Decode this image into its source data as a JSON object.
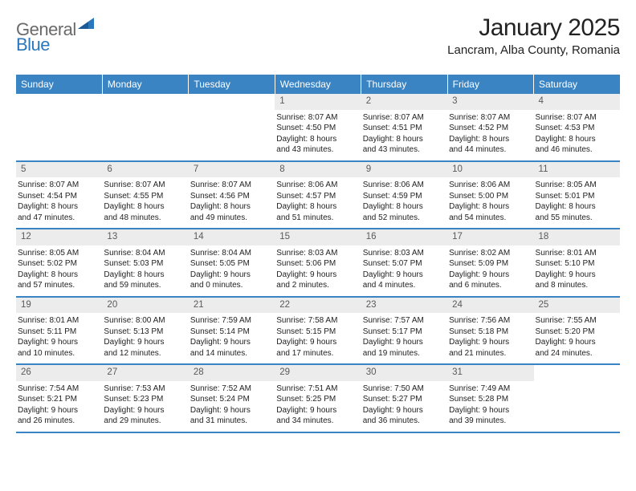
{
  "logo": {
    "text_general": "General",
    "text_blue": "Blue"
  },
  "header": {
    "month_title": "January 2025",
    "location": "Lancram, Alba County, Romania"
  },
  "style": {
    "header_bg": "#3b84c4",
    "header_fg": "#ffffff",
    "daynum_bg": "#ececec",
    "daynum_fg": "#5a5a5a",
    "text_color": "#222222",
    "sep_color": "#3b84c4",
    "month_title_fontsize": 30,
    "location_fontsize": 15,
    "weekday_fontsize": 12,
    "daynum_fontsize": 11.5,
    "cell_fontsize": 10
  },
  "weekdays": [
    "Sunday",
    "Monday",
    "Tuesday",
    "Wednesday",
    "Thursday",
    "Friday",
    "Saturday"
  ],
  "weeks": [
    [
      {
        "num": "",
        "lines": []
      },
      {
        "num": "",
        "lines": []
      },
      {
        "num": "",
        "lines": []
      },
      {
        "num": "1",
        "lines": [
          "Sunrise: 8:07 AM",
          "Sunset: 4:50 PM",
          "Daylight: 8 hours",
          "and 43 minutes."
        ]
      },
      {
        "num": "2",
        "lines": [
          "Sunrise: 8:07 AM",
          "Sunset: 4:51 PM",
          "Daylight: 8 hours",
          "and 43 minutes."
        ]
      },
      {
        "num": "3",
        "lines": [
          "Sunrise: 8:07 AM",
          "Sunset: 4:52 PM",
          "Daylight: 8 hours",
          "and 44 minutes."
        ]
      },
      {
        "num": "4",
        "lines": [
          "Sunrise: 8:07 AM",
          "Sunset: 4:53 PM",
          "Daylight: 8 hours",
          "and 46 minutes."
        ]
      }
    ],
    [
      {
        "num": "5",
        "lines": [
          "Sunrise: 8:07 AM",
          "Sunset: 4:54 PM",
          "Daylight: 8 hours",
          "and 47 minutes."
        ]
      },
      {
        "num": "6",
        "lines": [
          "Sunrise: 8:07 AM",
          "Sunset: 4:55 PM",
          "Daylight: 8 hours",
          "and 48 minutes."
        ]
      },
      {
        "num": "7",
        "lines": [
          "Sunrise: 8:07 AM",
          "Sunset: 4:56 PM",
          "Daylight: 8 hours",
          "and 49 minutes."
        ]
      },
      {
        "num": "8",
        "lines": [
          "Sunrise: 8:06 AM",
          "Sunset: 4:57 PM",
          "Daylight: 8 hours",
          "and 51 minutes."
        ]
      },
      {
        "num": "9",
        "lines": [
          "Sunrise: 8:06 AM",
          "Sunset: 4:59 PM",
          "Daylight: 8 hours",
          "and 52 minutes."
        ]
      },
      {
        "num": "10",
        "lines": [
          "Sunrise: 8:06 AM",
          "Sunset: 5:00 PM",
          "Daylight: 8 hours",
          "and 54 minutes."
        ]
      },
      {
        "num": "11",
        "lines": [
          "Sunrise: 8:05 AM",
          "Sunset: 5:01 PM",
          "Daylight: 8 hours",
          "and 55 minutes."
        ]
      }
    ],
    [
      {
        "num": "12",
        "lines": [
          "Sunrise: 8:05 AM",
          "Sunset: 5:02 PM",
          "Daylight: 8 hours",
          "and 57 minutes."
        ]
      },
      {
        "num": "13",
        "lines": [
          "Sunrise: 8:04 AM",
          "Sunset: 5:03 PM",
          "Daylight: 8 hours",
          "and 59 minutes."
        ]
      },
      {
        "num": "14",
        "lines": [
          "Sunrise: 8:04 AM",
          "Sunset: 5:05 PM",
          "Daylight: 9 hours",
          "and 0 minutes."
        ]
      },
      {
        "num": "15",
        "lines": [
          "Sunrise: 8:03 AM",
          "Sunset: 5:06 PM",
          "Daylight: 9 hours",
          "and 2 minutes."
        ]
      },
      {
        "num": "16",
        "lines": [
          "Sunrise: 8:03 AM",
          "Sunset: 5:07 PM",
          "Daylight: 9 hours",
          "and 4 minutes."
        ]
      },
      {
        "num": "17",
        "lines": [
          "Sunrise: 8:02 AM",
          "Sunset: 5:09 PM",
          "Daylight: 9 hours",
          "and 6 minutes."
        ]
      },
      {
        "num": "18",
        "lines": [
          "Sunrise: 8:01 AM",
          "Sunset: 5:10 PM",
          "Daylight: 9 hours",
          "and 8 minutes."
        ]
      }
    ],
    [
      {
        "num": "19",
        "lines": [
          "Sunrise: 8:01 AM",
          "Sunset: 5:11 PM",
          "Daylight: 9 hours",
          "and 10 minutes."
        ]
      },
      {
        "num": "20",
        "lines": [
          "Sunrise: 8:00 AM",
          "Sunset: 5:13 PM",
          "Daylight: 9 hours",
          "and 12 minutes."
        ]
      },
      {
        "num": "21",
        "lines": [
          "Sunrise: 7:59 AM",
          "Sunset: 5:14 PM",
          "Daylight: 9 hours",
          "and 14 minutes."
        ]
      },
      {
        "num": "22",
        "lines": [
          "Sunrise: 7:58 AM",
          "Sunset: 5:15 PM",
          "Daylight: 9 hours",
          "and 17 minutes."
        ]
      },
      {
        "num": "23",
        "lines": [
          "Sunrise: 7:57 AM",
          "Sunset: 5:17 PM",
          "Daylight: 9 hours",
          "and 19 minutes."
        ]
      },
      {
        "num": "24",
        "lines": [
          "Sunrise: 7:56 AM",
          "Sunset: 5:18 PM",
          "Daylight: 9 hours",
          "and 21 minutes."
        ]
      },
      {
        "num": "25",
        "lines": [
          "Sunrise: 7:55 AM",
          "Sunset: 5:20 PM",
          "Daylight: 9 hours",
          "and 24 minutes."
        ]
      }
    ],
    [
      {
        "num": "26",
        "lines": [
          "Sunrise: 7:54 AM",
          "Sunset: 5:21 PM",
          "Daylight: 9 hours",
          "and 26 minutes."
        ]
      },
      {
        "num": "27",
        "lines": [
          "Sunrise: 7:53 AM",
          "Sunset: 5:23 PM",
          "Daylight: 9 hours",
          "and 29 minutes."
        ]
      },
      {
        "num": "28",
        "lines": [
          "Sunrise: 7:52 AM",
          "Sunset: 5:24 PM",
          "Daylight: 9 hours",
          "and 31 minutes."
        ]
      },
      {
        "num": "29",
        "lines": [
          "Sunrise: 7:51 AM",
          "Sunset: 5:25 PM",
          "Daylight: 9 hours",
          "and 34 minutes."
        ]
      },
      {
        "num": "30",
        "lines": [
          "Sunrise: 7:50 AM",
          "Sunset: 5:27 PM",
          "Daylight: 9 hours",
          "and 36 minutes."
        ]
      },
      {
        "num": "31",
        "lines": [
          "Sunrise: 7:49 AM",
          "Sunset: 5:28 PM",
          "Daylight: 9 hours",
          "and 39 minutes."
        ]
      },
      {
        "num": "",
        "lines": []
      }
    ]
  ]
}
